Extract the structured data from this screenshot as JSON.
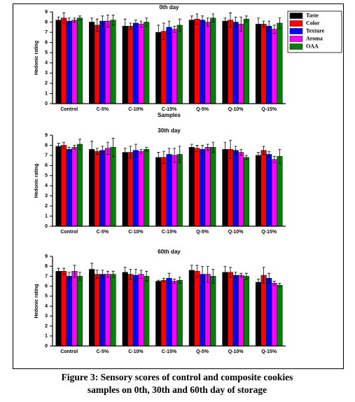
{
  "chart_data": [
    {
      "type": "bar",
      "title": "0th day",
      "x_label": "Samples",
      "y_label": "Hedonic rating",
      "categories": [
        "Control",
        "C-5%",
        "C-10%",
        "C-15%",
        "Q-5%",
        "Q-10%",
        "Q-15%"
      ],
      "ylim": [
        0,
        9
      ],
      "yticks": [
        0,
        1,
        2,
        3,
        4,
        5,
        6,
        7,
        8,
        9
      ],
      "legend": "upper right",
      "series": [
        {
          "name": "Taste",
          "color": "#000000",
          "values": [
            8.2,
            8.0,
            7.6,
            7.0,
            8.2,
            8.1,
            7.8
          ],
          "errors": [
            0.3,
            0.4,
            0.7,
            0.7,
            0.4,
            0.3,
            0.6
          ]
        },
        {
          "name": "Color",
          "color": "#ff0000",
          "values": [
            8.4,
            7.7,
            7.6,
            7.1,
            8.3,
            8.2,
            7.8
          ],
          "errors": [
            0.5,
            0.6,
            0.3,
            0.8,
            0.5,
            0.7,
            0.3
          ]
        },
        {
          "name": "Texture",
          "color": "#0000ff",
          "values": [
            8.1,
            8.1,
            7.9,
            7.5,
            8.2,
            8.0,
            7.6
          ],
          "errors": [
            0.3,
            0.5,
            0.3,
            0.6,
            0.4,
            0.5,
            0.5
          ]
        },
        {
          "name": "Aroma",
          "color": "#ff00ff",
          "values": [
            8.2,
            8.1,
            7.8,
            7.3,
            8.0,
            7.8,
            7.3
          ],
          "errors": [
            0.2,
            0.6,
            0.3,
            0.3,
            0.4,
            0.7,
            0.4
          ]
        },
        {
          "name": "OAA",
          "color": "#008000",
          "values": [
            8.4,
            8.2,
            8.0,
            7.7,
            8.4,
            8.3,
            7.9
          ],
          "errors": [
            0.2,
            0.5,
            0.4,
            0.6,
            0.4,
            0.3,
            0.5
          ]
        }
      ]
    },
    {
      "type": "bar",
      "title": "30th day",
      "y_label": "Hedonic rating",
      "categories": [
        "Control",
        "C-5%",
        "C-10%",
        "C-15%",
        "Q-5%",
        "Q-10%",
        "Q-15%"
      ],
      "ylim": [
        0,
        9
      ],
      "yticks": [
        0,
        1,
        2,
        3,
        4,
        5,
        6,
        7,
        8,
        9
      ],
      "series": [
        {
          "color": "#000000",
          "values": [
            7.9,
            7.6,
            7.3,
            6.8,
            7.8,
            7.6,
            7.0
          ],
          "errors": [
            0.3,
            0.8,
            0.4,
            0.5,
            0.3,
            0.7,
            0.3
          ]
        },
        {
          "color": "#ff0000",
          "values": [
            8.0,
            7.4,
            7.3,
            6.8,
            7.7,
            7.6,
            7.5
          ],
          "errors": [
            0.3,
            0.3,
            0.6,
            0.6,
            0.3,
            0.9,
            0.4
          ]
        },
        {
          "color": "#0000ff",
          "values": [
            7.6,
            7.5,
            7.5,
            7.1,
            7.6,
            7.5,
            7.1
          ],
          "errors": [
            0.2,
            0.4,
            0.6,
            0.6,
            0.4,
            0.4,
            0.3
          ]
        },
        {
          "color": "#ff00ff",
          "values": [
            7.8,
            7.7,
            7.4,
            7.0,
            7.8,
            7.3,
            6.6
          ],
          "errors": [
            0.2,
            0.6,
            0.2,
            0.7,
            0.3,
            0.3,
            0.3
          ]
        },
        {
          "color": "#008000",
          "values": [
            8.1,
            7.8,
            7.6,
            7.1,
            7.8,
            6.8,
            6.9
          ],
          "errors": [
            0.5,
            0.9,
            0.2,
            0.8,
            0.5,
            0.2,
            0.7
          ]
        }
      ]
    },
    {
      "type": "bar",
      "title": "60th day",
      "y_label": "Hedonic rating",
      "categories": [
        "Control",
        "C-5%",
        "C-10%",
        "C-15%",
        "Q-5%",
        "Q-10%",
        "Q-15%"
      ],
      "ylim": [
        0,
        9
      ],
      "yticks": [
        0,
        1,
        2,
        3,
        4,
        5,
        6,
        7,
        8,
        9
      ],
      "series": [
        {
          "color": "#000000",
          "values": [
            7.5,
            7.7,
            7.4,
            6.5,
            7.6,
            7.4,
            6.4
          ],
          "errors": [
            0.3,
            0.6,
            0.5,
            0.1,
            0.5,
            0.6,
            0.3
          ]
        },
        {
          "color": "#ff0000",
          "values": [
            7.5,
            7.2,
            7.2,
            6.6,
            7.5,
            7.4,
            7.1
          ],
          "errors": [
            0.3,
            0.4,
            0.5,
            0.2,
            0.6,
            0.5,
            0.8
          ]
        },
        {
          "color": "#0000ff",
          "values": [
            7.0,
            7.2,
            7.1,
            6.8,
            7.2,
            7.1,
            6.8
          ],
          "errors": [
            0.4,
            0.4,
            0.6,
            0.5,
            0.8,
            0.3,
            0.5
          ]
        },
        {
          "color": "#ff00ff",
          "values": [
            7.5,
            7.2,
            7.2,
            6.5,
            7.2,
            7.1,
            6.3
          ],
          "errors": [
            0.6,
            0.3,
            0.4,
            0.2,
            0.8,
            0.2,
            0.2
          ]
        },
        {
          "color": "#008000",
          "values": [
            7.0,
            7.2,
            7.0,
            6.6,
            7.0,
            7.0,
            6.1
          ],
          "errors": [
            0.4,
            0.3,
            0.5,
            0.3,
            0.7,
            0.3,
            0.2
          ]
        }
      ]
    }
  ],
  "caption": [
    "Figure 3: Sensory scores of control and composite cookies",
    "samples on 0th, 30th and 60th day of storage"
  ]
}
